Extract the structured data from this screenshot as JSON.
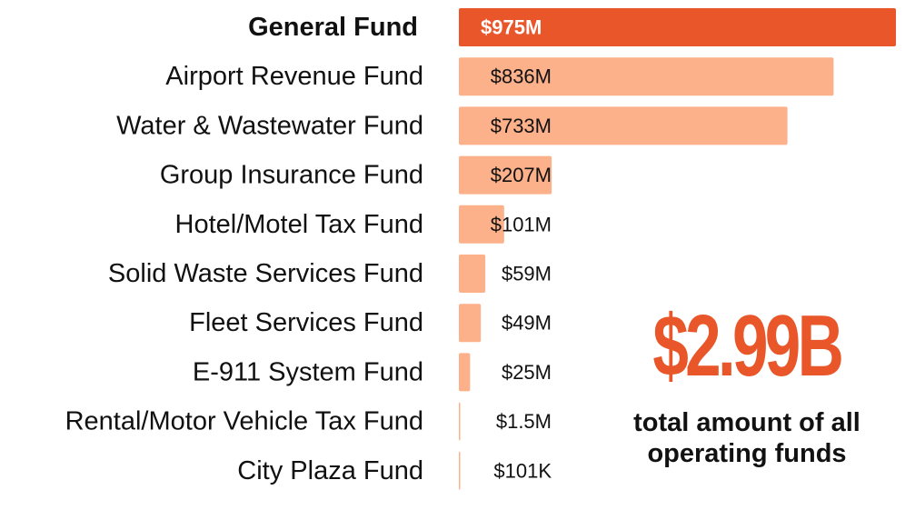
{
  "chart_data": {
    "type": "bar",
    "orientation": "horizontal",
    "categories": [
      "General Fund",
      "Airport Revenue Fund",
      "Water & Wastewater Fund",
      "Group Insurance Fund",
      "Hotel/Motel Tax Fund",
      "Solid Waste Services Fund",
      "Fleet Services Fund",
      "E-911 System Fund",
      "Rental/Motor Vehicle Tax Fund",
      "City Plaza Fund"
    ],
    "values": [
      975,
      836,
      733,
      207,
      101,
      59,
      49,
      25,
      1.5,
      0.101
    ],
    "value_unit": "millions USD",
    "value_labels": [
      "$975M",
      "$836M",
      "$733M",
      "$207M",
      "$101M",
      "$59M",
      "$49M",
      "$25M",
      "$1.5M",
      "$101K"
    ],
    "highlight_index": 0,
    "xlim": [
      0,
      975
    ],
    "grid": false,
    "colors": {
      "highlight": "#e8562a",
      "default": "#fdb18a"
    }
  },
  "summary": {
    "total_value": "$2.99B",
    "caption_line1": "total amount of all",
    "caption_line2": "operating funds"
  }
}
